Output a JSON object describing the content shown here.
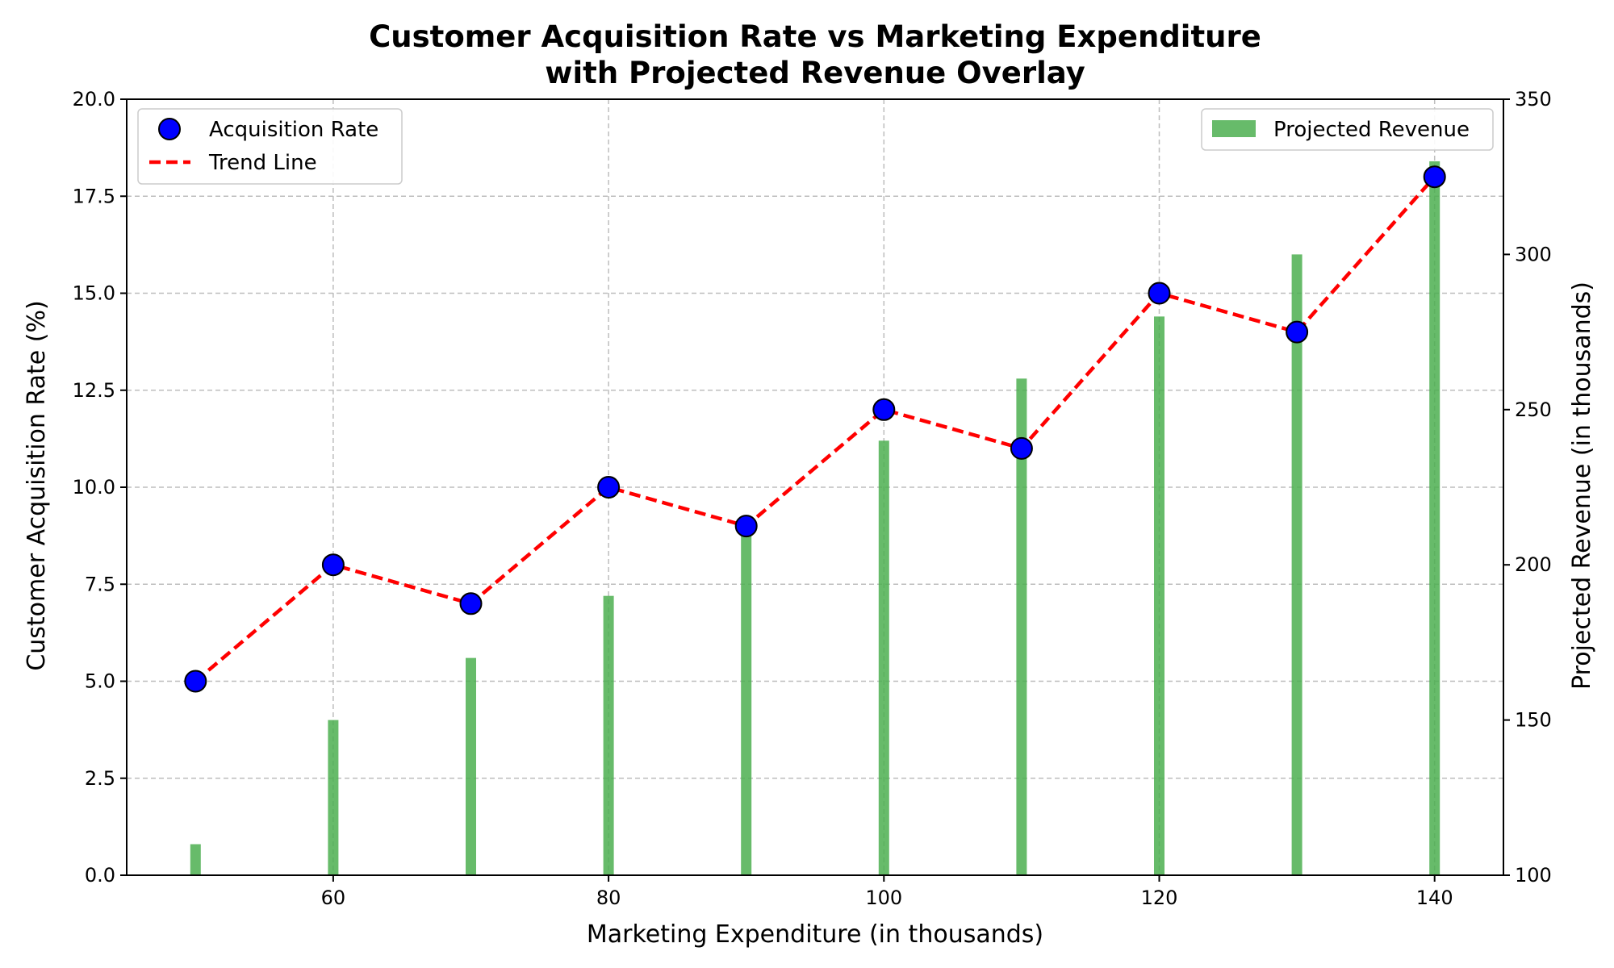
{
  "chart_data": {
    "type": "scatter",
    "title_line1": "Customer Acquisition Rate vs Marketing Expenditure",
    "title_line2": "with Projected Revenue Overlay",
    "xlabel": "Marketing Expenditure (in thousands)",
    "ylabel": "Customer Acquisition Rate (%)",
    "y2label": "Projected Revenue (in thousands)",
    "x": [
      50,
      60,
      70,
      80,
      90,
      100,
      110,
      120,
      130,
      140
    ],
    "xlim": [
      45,
      145
    ],
    "ylim": [
      0,
      20
    ],
    "y2lim": [
      100,
      350
    ],
    "xticks": [
      60,
      80,
      100,
      120,
      140
    ],
    "yticks": [
      "0.0",
      "2.5",
      "5.0",
      "7.5",
      "10.0",
      "12.5",
      "15.0",
      "17.5",
      "20.0"
    ],
    "y2ticks": [
      100,
      150,
      200,
      250,
      300,
      350
    ],
    "grid": true,
    "series": [
      {
        "name": "Acquisition Rate",
        "kind": "scatter",
        "axis": "left",
        "color": "#0000ff",
        "edge_color": "#000000",
        "values": [
          5,
          8,
          7,
          10,
          9,
          12,
          11,
          15,
          14,
          18
        ]
      },
      {
        "name": "Trend Line",
        "kind": "line",
        "style": "dashed",
        "axis": "left",
        "color": "#ff0000",
        "values": [
          5,
          8,
          7,
          10,
          9,
          12,
          11,
          15,
          14,
          18
        ]
      },
      {
        "name": "Projected Revenue",
        "kind": "bar",
        "axis": "right",
        "color": "#4caf50",
        "values": [
          110,
          150,
          170,
          190,
          210,
          240,
          260,
          280,
          300,
          330
        ]
      }
    ],
    "legend_left_placement": "upper-left",
    "legend_right_placement": "upper-right"
  }
}
